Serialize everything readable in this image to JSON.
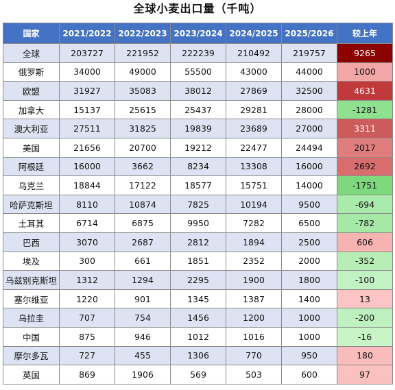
{
  "title": "全球小麦出口量（千吨）",
  "columns": [
    "国家",
    "2021/2022",
    "2022/2023",
    "2023/2024",
    "2024/2025",
    "2025/2026",
    "较上年"
  ],
  "rows": [
    {
      "name": "全球",
      "values": [
        "203727",
        "221952",
        "222239",
        "210492",
        "219757"
      ],
      "change": "9265",
      "color": "#8b0000"
    },
    {
      "name": "俄罗斯",
      "values": [
        "34000",
        "49000",
        "55500",
        "43000",
        "44000"
      ],
      "change": "1000",
      "color": "#f2a6a6"
    },
    {
      "name": "欧盟",
      "values": [
        "31927",
        "35083",
        "38012",
        "27869",
        "32500"
      ],
      "change": "4631",
      "color": "#c0393b"
    },
    {
      "name": "加拿大",
      "values": [
        "15137",
        "25615",
        "25437",
        "29281",
        "28000"
      ],
      "change": "-1281",
      "color": "#8fe08f"
    },
    {
      "name": "澳大利亚",
      "values": [
        "27511",
        "31825",
        "19839",
        "23689",
        "27000"
      ],
      "change": "3311",
      "color": "#cd5b5b"
    },
    {
      "name": "美国",
      "values": [
        "21656",
        "20700",
        "19212",
        "22477",
        "24494"
      ],
      "change": "2017",
      "color": "#e07e7e"
    },
    {
      "name": "阿根廷",
      "values": [
        "16000",
        "3662",
        "8234",
        "13308",
        "16000"
      ],
      "change": "2692",
      "color": "#d96d6d"
    },
    {
      "name": "乌克兰",
      "values": [
        "18844",
        "17122",
        "18577",
        "15751",
        "14000"
      ],
      "change": "-1751",
      "color": "#7ed87e"
    },
    {
      "name": "哈萨克斯坦",
      "values": [
        "8110",
        "10874",
        "7825",
        "10194",
        "9500"
      ],
      "change": "-694",
      "color": "#aaeaaa"
    },
    {
      "name": "土耳其",
      "values": [
        "6714",
        "6875",
        "9950",
        "7282",
        "6500"
      ],
      "change": "-782",
      "color": "#a6e8a6"
    },
    {
      "name": "巴西",
      "values": [
        "3070",
        "2687",
        "2812",
        "1894",
        "2500"
      ],
      "change": "606",
      "color": "#f7b2b2"
    },
    {
      "name": "埃及",
      "values": [
        "300",
        "661",
        "1851",
        "2352",
        "2000"
      ],
      "change": "-352",
      "color": "#b6eeb6"
    },
    {
      "name": "乌兹别克斯坦",
      "values": [
        "1312",
        "1294",
        "2295",
        "1900",
        "1800"
      ],
      "change": "-100",
      "color": "#c2f2c2"
    },
    {
      "name": "塞尔维亚",
      "values": [
        "1220",
        "901",
        "1345",
        "1387",
        "1400"
      ],
      "change": "13",
      "color": "#fcc4c4"
    },
    {
      "name": "乌拉圭",
      "values": [
        "707",
        "754",
        "1456",
        "1200",
        "1000"
      ],
      "change": "-200",
      "color": "#bff0bf"
    },
    {
      "name": "中国",
      "values": [
        "875",
        "946",
        "1012",
        "1016",
        "1000"
      ],
      "change": "-16",
      "color": "#c8f4c8"
    },
    {
      "name": "摩尔多瓦",
      "values": [
        "727",
        "455",
        "1306",
        "770",
        "950"
      ],
      "change": "180",
      "color": "#f9bcbc"
    },
    {
      "name": "英国",
      "values": [
        "869",
        "1906",
        "569",
        "503",
        "600"
      ],
      "change": "97",
      "color": "#fbc0c0"
    }
  ],
  "chart_data": {
    "type": "table",
    "title": "全球小麦出口量（千吨）",
    "columns": [
      "国家",
      "2021/2022",
      "2022/2023",
      "2023/2024",
      "2024/2025",
      "2025/2026",
      "较上年"
    ],
    "rows": [
      [
        "全球",
        203727,
        221952,
        222239,
        210492,
        219757,
        9265
      ],
      [
        "俄罗斯",
        34000,
        49000,
        55500,
        43000,
        44000,
        1000
      ],
      [
        "欧盟",
        31927,
        35083,
        38012,
        27869,
        32500,
        4631
      ],
      [
        "加拿大",
        15137,
        25615,
        25437,
        29281,
        28000,
        -1281
      ],
      [
        "澳大利亚",
        27511,
        31825,
        19839,
        23689,
        27000,
        3311
      ],
      [
        "美国",
        21656,
        20700,
        19212,
        22477,
        24494,
        2017
      ],
      [
        "阿根廷",
        16000,
        3662,
        8234,
        13308,
        16000,
        2692
      ],
      [
        "乌克兰",
        18844,
        17122,
        18577,
        15751,
        14000,
        -1751
      ],
      [
        "哈萨克斯坦",
        8110,
        10874,
        7825,
        10194,
        9500,
        -694
      ],
      [
        "土耳其",
        6714,
        6875,
        9950,
        7282,
        6500,
        -782
      ],
      [
        "巴西",
        3070,
        2687,
        2812,
        1894,
        2500,
        606
      ],
      [
        "埃及",
        300,
        661,
        1851,
        2352,
        2000,
        -352
      ],
      [
        "乌兹别克斯坦",
        1312,
        1294,
        2295,
        1900,
        1800,
        -100
      ],
      [
        "塞尔维亚",
        1220,
        901,
        1345,
        1387,
        1400,
        13
      ],
      [
        "乌拉圭",
        707,
        754,
        1456,
        1200,
        1000,
        -200
      ],
      [
        "中国",
        875,
        946,
        1012,
        1016,
        1000,
        -16
      ],
      [
        "摩尔多瓦",
        727,
        455,
        1306,
        770,
        950,
        180
      ],
      [
        "英国",
        869,
        1906,
        569,
        503,
        600,
        97
      ]
    ]
  }
}
